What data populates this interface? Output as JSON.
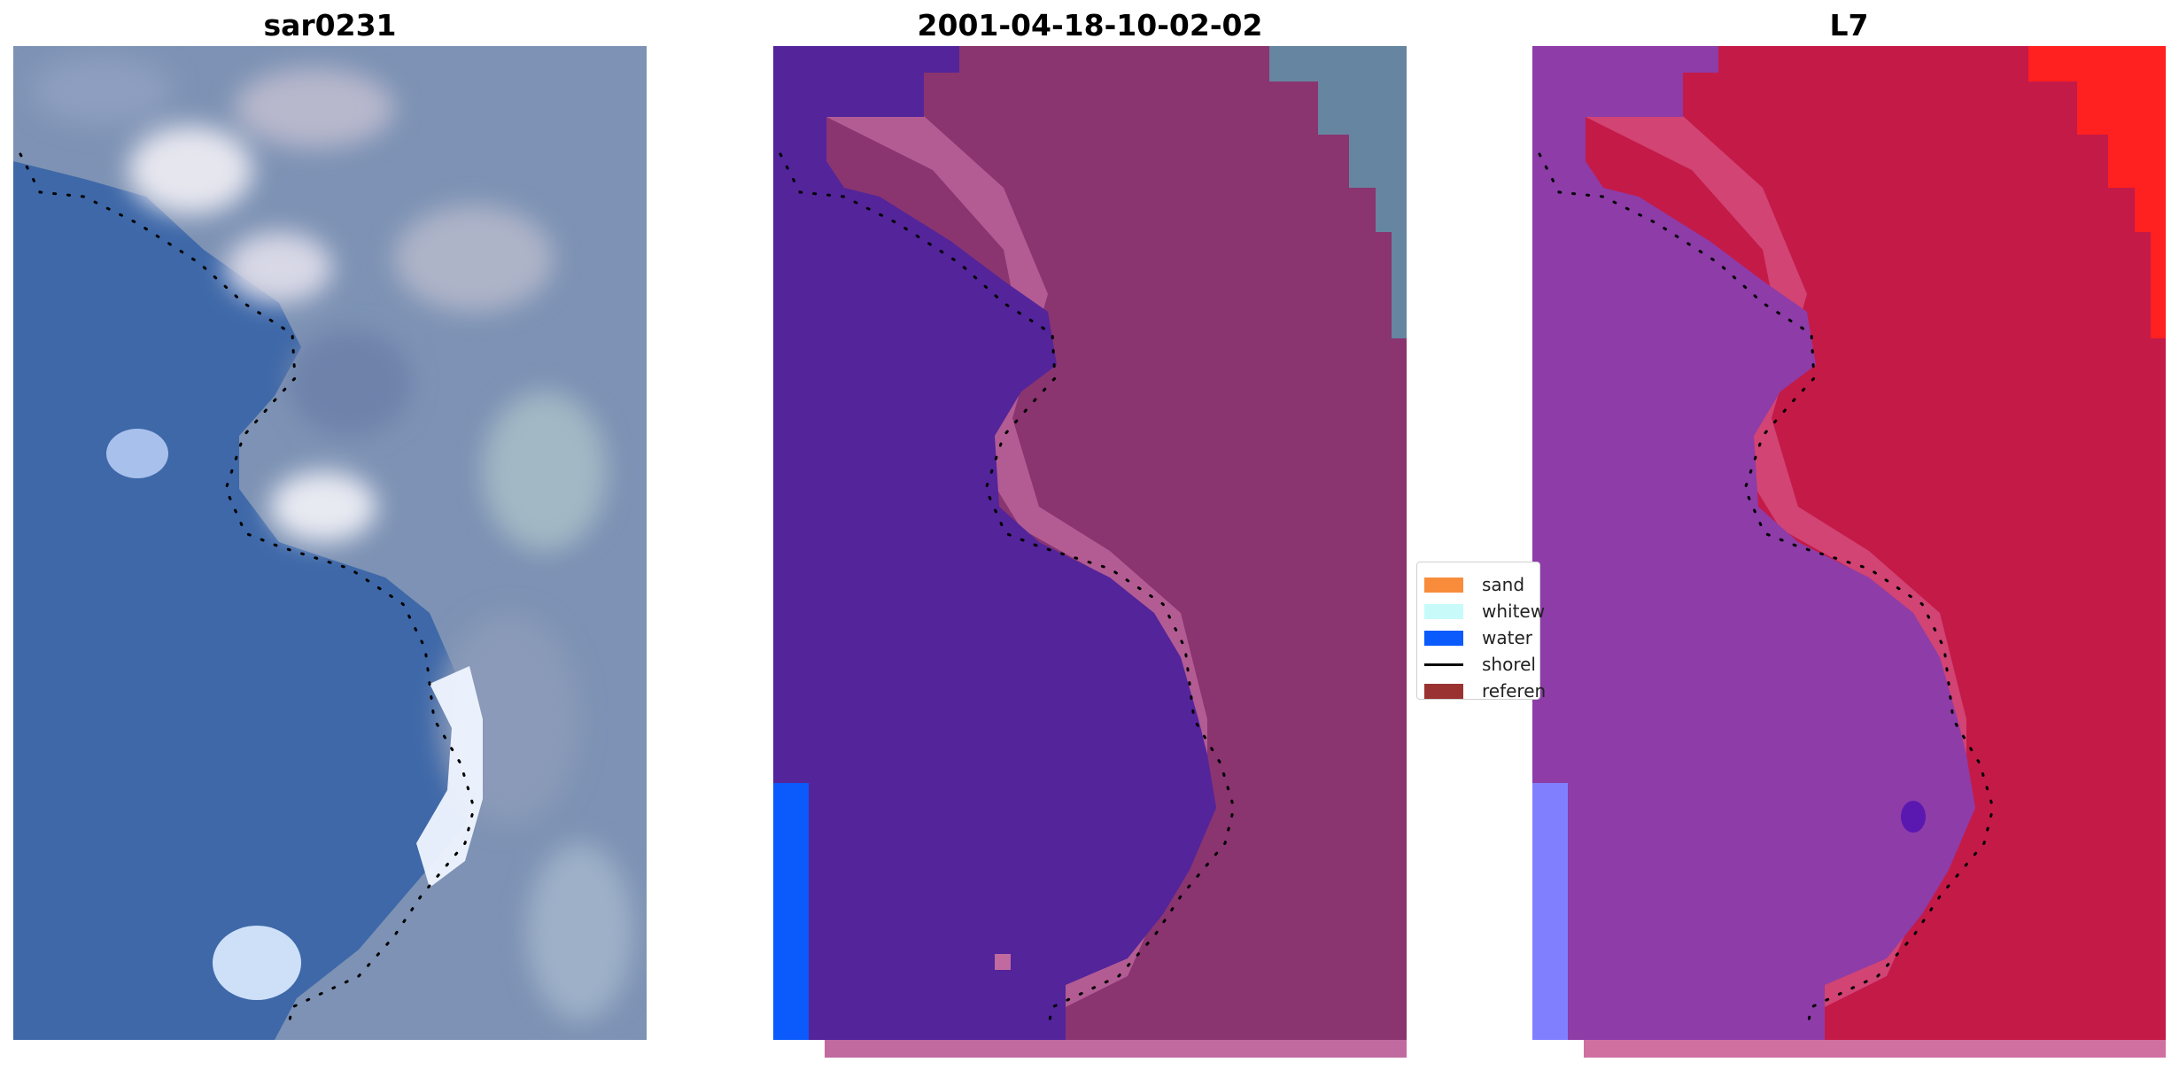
{
  "panels": [
    {
      "title": "sar0231",
      "image": "rgb-satellite"
    },
    {
      "title": "2001-04-18-10-02-02",
      "image": "classified"
    },
    {
      "title": "L7",
      "image": "false-colour-index"
    }
  ],
  "legend": {
    "items": [
      {
        "label": "sand",
        "color": "#f98c3a",
        "kind": "patch"
      },
      {
        "label": "whitew",
        "color": "#c8fafa",
        "kind": "patch"
      },
      {
        "label": "water",
        "color": "#0a5afc",
        "kind": "patch"
      },
      {
        "label": "shorel",
        "color": "#000000",
        "kind": "line"
      },
      {
        "label": "referen",
        "color": "#9b3232",
        "kind": "patch"
      }
    ]
  },
  "colors": {
    "classified_water": "#53249a",
    "classified_land": "#8a3470",
    "classified_edge": "#c06aa0",
    "classified_sea_blue": "#6685a0",
    "classified_blue_strip": "#0a5afc",
    "index_water": "#8d3ca8",
    "index_land": "#c41a48",
    "index_bright_red": "#ff2020",
    "index_blue_strip": "#8080ff",
    "rgb_water": "#3e68a8",
    "rgb_land": "#7d92b4",
    "rgb_surf": "#f0f6ff",
    "shoreline_dots": "#000000"
  }
}
